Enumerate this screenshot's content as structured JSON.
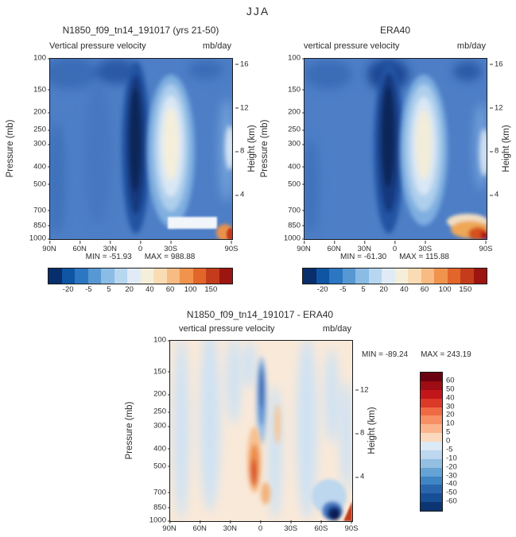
{
  "main_title": "JJA",
  "shared": {
    "pressure_label": "Pressure (mb)",
    "height_label": "Height (km)",
    "pressure_ticks": [
      "100",
      "150",
      "200",
      "250",
      "300",
      "400",
      "500",
      "700",
      "850",
      "1000"
    ],
    "height_ticks_top": [
      "16",
      "12",
      "8",
      "4"
    ],
    "height_ticks_bottom": [
      "12",
      "8",
      "4"
    ],
    "lat_ticks_top": [
      "90N",
      "60N",
      "30N",
      "0",
      "30S",
      "90S"
    ],
    "lat_ticks_bottom": [
      "90N",
      "60N",
      "30N",
      "0",
      "30S",
      "60S",
      "90S"
    ]
  },
  "model_panel": {
    "title": "N1850_f09_tn14_191017 (yrs 21-50)",
    "subtitle": "Vertical pressure velocity",
    "units": "mb/day",
    "min_label": "MIN = -51.93",
    "max_label": "MAX = 988.88"
  },
  "era_panel": {
    "title": "ERA40",
    "subtitle": "vertical pressure velocity",
    "units": "mb/day",
    "min_label": "MIN = -61.30",
    "max_label": "MAX = 115.88"
  },
  "diff_panel": {
    "title": "N1850_f09_tn14_191017 - ERA40",
    "subtitle": "vertical pressure velocity",
    "units": "mb/day",
    "min_label": "MIN = -89.24",
    "max_label": "MAX = 243.19"
  },
  "colorbar_top": {
    "labels": [
      "-20",
      "-5",
      "5",
      "20",
      "40",
      "60",
      "100",
      "150"
    ],
    "colors": [
      "#082e6b",
      "#0f55a4",
      "#2b77c2",
      "#5898d2",
      "#8abce6",
      "#b7d6f0",
      "#e0ebf7",
      "#f5efd9",
      "#fadcb4",
      "#f7bb83",
      "#f0934d",
      "#e2662a",
      "#c43c1b",
      "#9c1510"
    ]
  },
  "colorbar_diff": {
    "labels": [
      "60",
      "50",
      "40",
      "30",
      "20",
      "10",
      "5",
      "0",
      "-5",
      "-10",
      "-20",
      "-30",
      "-40",
      "-50",
      "-60"
    ],
    "colors": [
      "#6b0010",
      "#9e0d14",
      "#c2161b",
      "#dc3a28",
      "#ef6a45",
      "#f79065",
      "#fbb58d",
      "#fbd9bd",
      "#dce9f6",
      "#bcd7ee",
      "#92bfe2",
      "#65a3d4",
      "#3f85c4",
      "#2a66ae",
      "#174f96",
      "#0b3573"
    ]
  },
  "chart_data": [
    {
      "type": "heatmap",
      "title": "N1850_f09_tn14_191017 (yrs 21-50)",
      "variable": "Vertical pressure velocity",
      "units": "mb/day",
      "season": "JJA",
      "x_ticks": [
        "90N",
        "60N",
        "30N",
        "0",
        "30S",
        "90S"
      ],
      "x_range": [
        "90N",
        "90S"
      ],
      "ylabel": "Pressure (mb)",
      "y_ticks": [
        100,
        150,
        200,
        250,
        300,
        400,
        500,
        700,
        850,
        1000
      ],
      "y_scale": "log",
      "y2label": "Height (km)",
      "y2_ticks": [
        16,
        12,
        8,
        4
      ],
      "colorbar_levels": [
        -20,
        -5,
        5,
        20,
        40,
        60,
        100,
        150
      ],
      "legend_position": "bottom",
      "min": -51.93,
      "max": 988.88
    },
    {
      "type": "heatmap",
      "title": "ERA40",
      "variable": "vertical pressure velocity",
      "units": "mb/day",
      "season": "JJA",
      "x_ticks": [
        "90N",
        "60N",
        "30N",
        "0",
        "30S",
        "90S"
      ],
      "x_range": [
        "90N",
        "90S"
      ],
      "ylabel": "Pressure (mb)",
      "y_ticks": [
        100,
        150,
        200,
        250,
        300,
        400,
        500,
        700,
        850,
        1000
      ],
      "y_scale": "log",
      "y2label": "Height (km)",
      "y2_ticks": [
        16,
        12,
        8,
        4
      ],
      "colorbar_levels": [
        -20,
        -5,
        5,
        20,
        40,
        60,
        100,
        150
      ],
      "legend_position": "bottom",
      "min": -61.3,
      "max": 115.88
    },
    {
      "type": "heatmap",
      "title": "N1850_f09_tn14_191017 - ERA40",
      "variable": "vertical pressure velocity",
      "units": "mb/day",
      "season": "JJA",
      "x_ticks": [
        "90N",
        "60N",
        "30N",
        "0",
        "30S",
        "60S",
        "90S"
      ],
      "x_range": [
        "90N",
        "90S"
      ],
      "ylabel": "Pressure (mb)",
      "y_ticks": [
        100,
        150,
        200,
        250,
        300,
        400,
        500,
        700,
        850,
        1000
      ],
      "y_scale": "log",
      "y2label": "Height (km)",
      "y2_ticks": [
        12,
        8,
        4
      ],
      "colorbar_levels": [
        60,
        50,
        40,
        30,
        20,
        10,
        5,
        0,
        -5,
        -10,
        -20,
        -30,
        -40,
        -50,
        -60
      ],
      "legend_position": "right",
      "min": -89.24,
      "max": 243.19
    }
  ]
}
